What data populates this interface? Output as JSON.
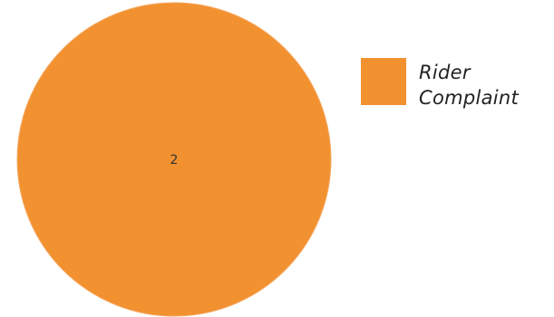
{
  "chart_data": {
    "type": "pie",
    "title": "",
    "categories": [
      "Rider Complaint"
    ],
    "values": [
      2
    ],
    "data_labels": [
      "2"
    ],
    "colors": [
      "#f29130"
    ],
    "legend": {
      "placement": "right",
      "entries": [
        "Rider Complaint"
      ]
    },
    "grid": false
  }
}
